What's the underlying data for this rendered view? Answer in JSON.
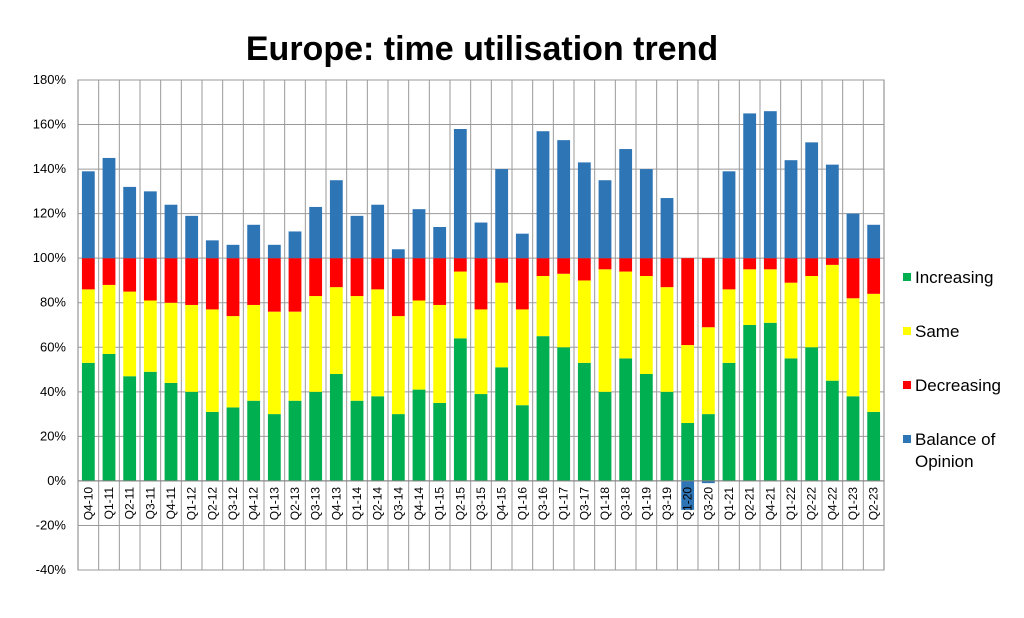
{
  "chart_data": {
    "type": "bar",
    "stacked": true,
    "title": "Europe: time utilisation trend",
    "xlabel": "",
    "ylabel": "",
    "ylim": [
      -40,
      180
    ],
    "y_ticks": [
      -40,
      -20,
      0,
      20,
      40,
      60,
      80,
      100,
      120,
      140,
      160,
      180
    ],
    "y_tick_labels": [
      "-40%",
      "-20%",
      "0%",
      "20%",
      "40%",
      "60%",
      "80%",
      "100%",
      "120%",
      "140%",
      "160%",
      "180%"
    ],
    "grid": true,
    "legend_position": "right",
    "categories": [
      "Q4-10",
      "Q1-11",
      "Q2-11",
      "Q3-11",
      "Q4-11",
      "Q1-12",
      "Q2-12",
      "Q3-12",
      "Q4-12",
      "Q1-13",
      "Q2-13",
      "Q3-13",
      "Q4-13",
      "Q1-14",
      "Q2-14",
      "Q3-14",
      "Q4-14",
      "Q1-15",
      "Q2-15",
      "Q3-15",
      "Q4-15",
      "Q1-16",
      "Q3-16",
      "Q1-17",
      "Q3-17",
      "Q1-18",
      "Q3-18",
      "Q1-19",
      "Q3-19",
      "Q1-20",
      "Q3-20",
      "Q1-21",
      "Q2-21",
      "Q4-21",
      "Q1-22",
      "Q2-22",
      "Q4-22",
      "Q1-23",
      "Q2-23"
    ],
    "series": [
      {
        "name": "Increasing",
        "color": "#00b050",
        "values": [
          53,
          57,
          47,
          49,
          44,
          40,
          31,
          33,
          36,
          30,
          36,
          40,
          48,
          36,
          38,
          30,
          41,
          35,
          64,
          39,
          51,
          34,
          65,
          60,
          53,
          40,
          55,
          48,
          40,
          26,
          30,
          53,
          70,
          71,
          55,
          60,
          45,
          38,
          31
        ]
      },
      {
        "name": "Same",
        "color": "#ffff00",
        "values": [
          33,
          31,
          38,
          32,
          36,
          39,
          46,
          41,
          43,
          46,
          40,
          43,
          39,
          47,
          48,
          44,
          40,
          44,
          30,
          38,
          38,
          43,
          27,
          33,
          37,
          55,
          39,
          44,
          47,
          35,
          39,
          33,
          25,
          24,
          34,
          32,
          52,
          44,
          53
        ]
      },
      {
        "name": "Decreasing",
        "color": "#ff0000",
        "values": [
          14,
          12,
          15,
          19,
          20,
          21,
          23,
          26,
          21,
          24,
          24,
          17,
          13,
          17,
          14,
          26,
          19,
          21,
          6,
          23,
          11,
          23,
          8,
          7,
          10,
          5,
          6,
          8,
          13,
          39,
          31,
          14,
          5,
          5,
          11,
          8,
          3,
          18,
          16
        ]
      },
      {
        "name": "Balance of Opinion",
        "color": "#2e75b6",
        "values": [
          39,
          45,
          32,
          30,
          24,
          19,
          8,
          6,
          15,
          6,
          12,
          23,
          35,
          19,
          24,
          4,
          22,
          14,
          58,
          16,
          40,
          11,
          57,
          53,
          43,
          35,
          49,
          40,
          27,
          -13,
          -1,
          39,
          65,
          66,
          44,
          52,
          42,
          20,
          15
        ]
      }
    ]
  }
}
